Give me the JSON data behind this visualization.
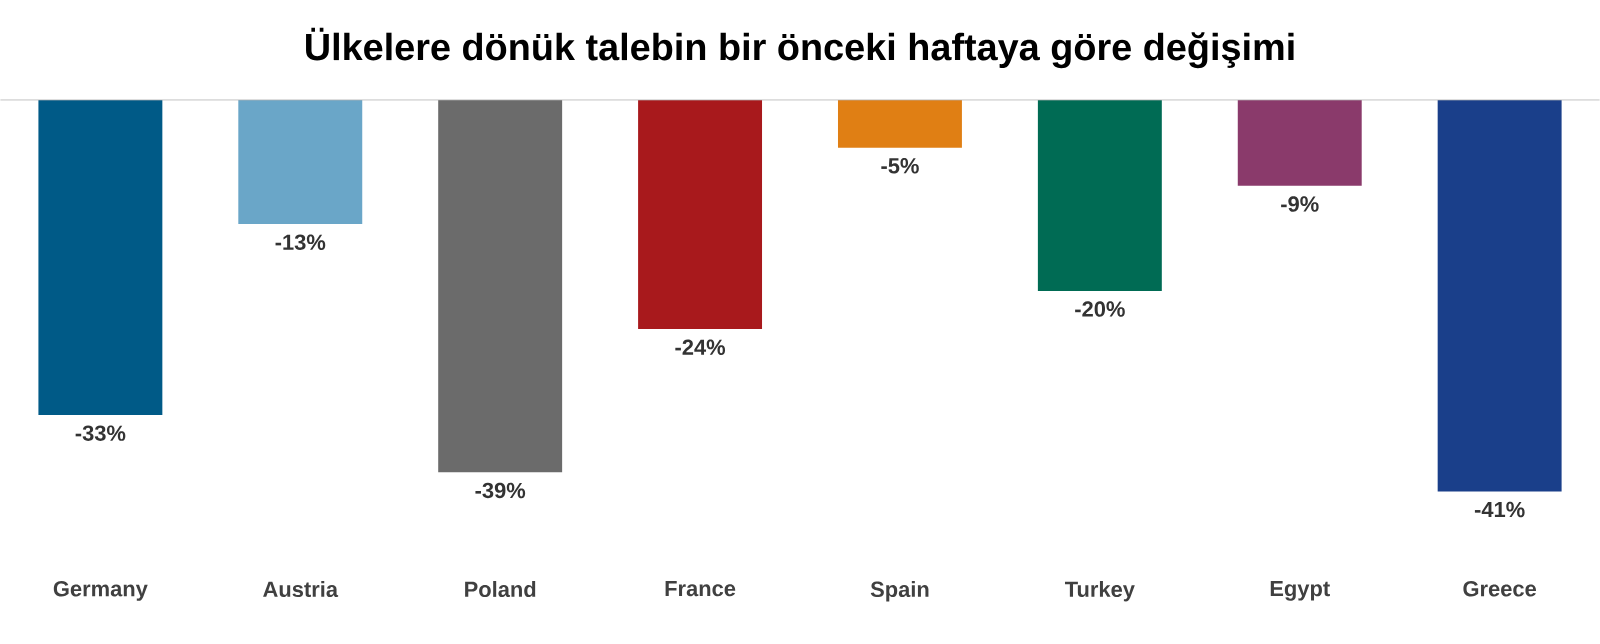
{
  "chart_data": {
    "type": "bar",
    "title": "Ülkelere dönük talebin bir önceki haftaya göre değişimi",
    "categories": [
      "Germany",
      "Austria",
      "Poland",
      "France",
      "Spain",
      "Turkey",
      "Egypt",
      "Greece"
    ],
    "values": [
      -33,
      -13,
      -39,
      -24,
      -5,
      -20,
      -9,
      -41
    ],
    "colors": [
      "#005a87",
      "#6aa6c8",
      "#6b6b6b",
      "#a8191c",
      "#e07f14",
      "#006b54",
      "#8a3a6b",
      "#1a3f8a"
    ],
    "value_labels": [
      "-33%",
      "-13%",
      "-39%",
      "-24%",
      "-5%",
      "-20%",
      "-9%",
      "-41%"
    ]
  }
}
